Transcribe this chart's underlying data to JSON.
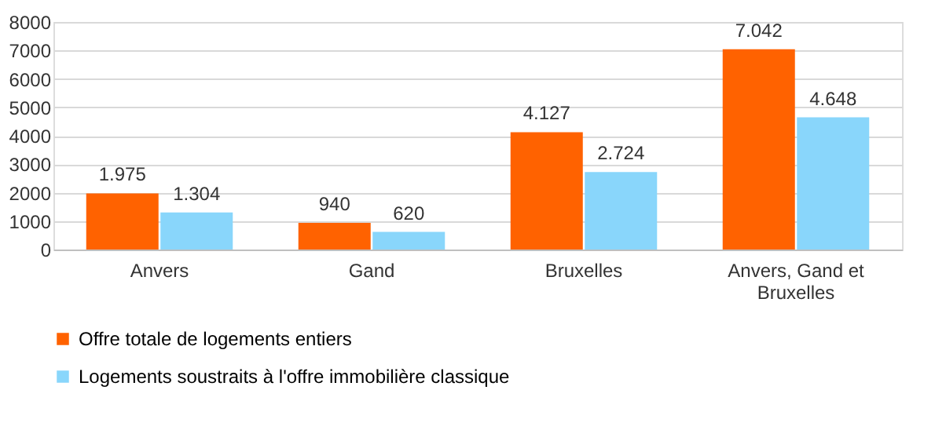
{
  "chart_data": {
    "type": "bar",
    "categories": [
      "Anvers",
      "Gand",
      "Bruxelles",
      "Anvers, Gand et Bruxelles"
    ],
    "series": [
      {
        "name": "Offre totale de logements entiers",
        "color": "#ff6200",
        "values": [
          1975,
          940,
          4127,
          7042
        ],
        "value_labels": [
          "1.975",
          "940",
          "4.127",
          "7.042"
        ]
      },
      {
        "name": "Logements soustraits à l'offre immobilière classique",
        "color": "#89d6fb",
        "values": [
          1304,
          620,
          2724,
          4648
        ],
        "value_labels": [
          "1.304",
          "620",
          "2.724",
          "4.648"
        ]
      }
    ],
    "ylim": [
      0,
      8000
    ],
    "yticks": [
      0,
      1000,
      2000,
      3000,
      4000,
      5000,
      6000,
      7000,
      8000
    ],
    "grid": "y",
    "legend": "bottom"
  }
}
